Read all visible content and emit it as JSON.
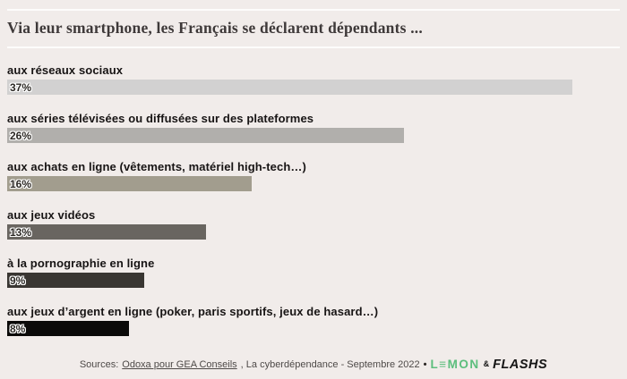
{
  "header": {
    "title": "Via leur smartphone, les Français se déclarent dépendants ..."
  },
  "chart_data": {
    "type": "bar",
    "orientation": "horizontal",
    "title": "Via leur smartphone, les Français se déclarent dépendants ...",
    "categories": [
      "aux réseaux sociaux",
      "aux séries télévisées ou diffusées sur des plateformes",
      "aux achats en ligne (vêtements, matériel high-tech…)",
      "aux jeux vidéos",
      "à la pornographie en ligne",
      "aux jeux d’argent en ligne (poker, paris sportifs, jeux de hasard…)"
    ],
    "values": [
      37,
      26,
      16,
      13,
      9,
      8
    ],
    "value_labels": [
      "37%",
      "26%",
      "16%",
      "13%",
      "9%",
      "8%"
    ],
    "bar_colors": [
      "#d2d1d1",
      "#b1afac",
      "#a29d8e",
      "#696560",
      "#393632",
      "#0b0a09"
    ],
    "xlim": [
      0,
      37
    ],
    "unit": "%",
    "grid": false,
    "legend": false
  },
  "footer": {
    "sources_prefix": "Sources:",
    "source_link": "Odoxa pour GEA Conseils",
    "source_suffix": ", La cyberdépendance - Septembre 2022",
    "separator": "•",
    "lemon_logo": "L≡MON",
    "ampersand": "&",
    "flashs_logo": "FLASHS"
  },
  "colors": {
    "background": "#f1ecea",
    "rule": "#fdfcfb",
    "title": "#3e3939",
    "category_label": "#171414",
    "value_label": "#2b2824",
    "footer_text": "#4e4a48",
    "lemon_green": "#5cbe7d",
    "flashs_black": "#141414"
  }
}
